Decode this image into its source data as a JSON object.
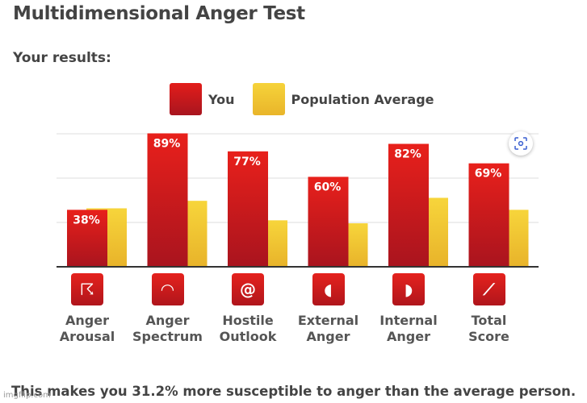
{
  "title": "Multidimensional Anger Test",
  "subtitle": "Your results:",
  "legend": {
    "you": "You",
    "population": "Population Average"
  },
  "conclusion": "This makes you 31.2% more susceptible to anger than the average person.",
  "watermark": "imgflip.com",
  "colors": {
    "you": "#d91a1c",
    "population": "#f2c834",
    "grid": "#dddddd"
  },
  "chart_data": {
    "type": "bar",
    "categories": [
      "Anger\nArousal",
      "Anger\nSpectrum",
      "Hostile\nOutlook",
      "External\nAnger",
      "Internal\nAnger",
      "Total\nScore"
    ],
    "series": [
      {
        "name": "You",
        "values": [
          38,
          89,
          77,
          60,
          82,
          69
        ],
        "labels": [
          "38%",
          "89%",
          "77%",
          "60%",
          "82%",
          "69%"
        ]
      },
      {
        "name": "Population Average",
        "values": [
          39,
          44,
          31,
          29,
          46,
          38
        ]
      }
    ],
    "ylim": [
      0,
      100
    ],
    "grid": true,
    "legend_position": "top"
  },
  "icons": [
    "storm-cloud-icon",
    "spectrum-fan-icon",
    "head-spiral-icon",
    "head-speaking-out-icon",
    "head-speaking-in-icon",
    "line-graph-icon"
  ]
}
